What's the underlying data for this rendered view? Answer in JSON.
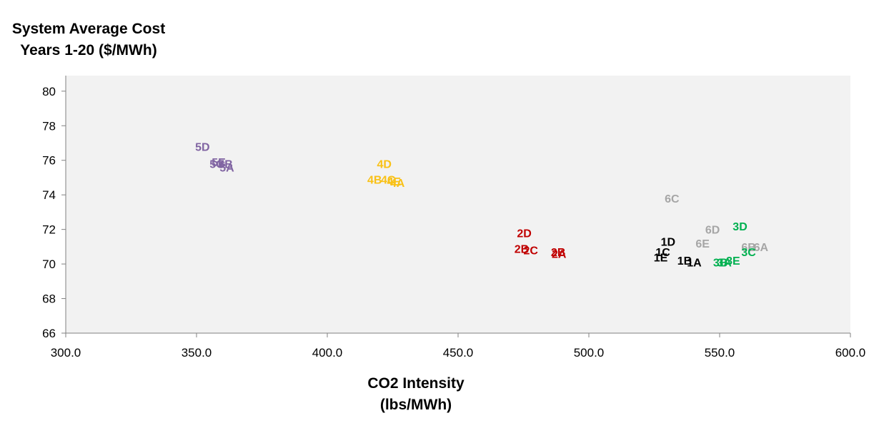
{
  "chart_data": {
    "type": "scatter",
    "ylabel_lines": [
      "System Average Cost",
      "Years 1-20 ($/MWh)"
    ],
    "xlabel_lines": [
      "CO2 Intensity",
      "(lbs/MWh)"
    ],
    "xlim": [
      300,
      600
    ],
    "ylim": [
      66,
      80.9
    ],
    "xticks": [
      "300.0",
      "350.0",
      "400.0",
      "450.0",
      "500.0",
      "550.0",
      "600.0"
    ],
    "xtick_values": [
      300,
      350,
      400,
      450,
      500,
      550,
      600
    ],
    "yticks": [
      "66",
      "68",
      "70",
      "72",
      "74",
      "76",
      "78",
      "80"
    ],
    "ytick_values": [
      66,
      68,
      70,
      72,
      74,
      76,
      78,
      80
    ],
    "grid": false,
    "plot_background": "#f2f2f2",
    "points": [
      {
        "label": "5D",
        "x": 349.5,
        "y": 76.8,
        "color": "#8064a2"
      },
      {
        "label": "5E",
        "x": 355.8,
        "y": 75.9,
        "color": "#8064a2"
      },
      {
        "label": "5C",
        "x": 355.0,
        "y": 75.8,
        "color": "#8064a2"
      },
      {
        "label": "5B",
        "x": 358.3,
        "y": 75.8,
        "color": "#8064a2"
      },
      {
        "label": "5A",
        "x": 358.8,
        "y": 75.6,
        "color": "#8064a2"
      },
      {
        "label": "4D",
        "x": 419.0,
        "y": 75.8,
        "color": "#f9c116"
      },
      {
        "label": "4B",
        "x": 415.3,
        "y": 74.9,
        "color": "#f9c116"
      },
      {
        "label": "4C",
        "x": 420.5,
        "y": 74.9,
        "color": "#f9c116"
      },
      {
        "label": "4E",
        "x": 422.8,
        "y": 74.8,
        "color": "#f9c116"
      },
      {
        "label": "4A",
        "x": 424.0,
        "y": 74.7,
        "color": "#f9c116"
      },
      {
        "label": "2D",
        "x": 472.5,
        "y": 71.8,
        "color": "#c00000"
      },
      {
        "label": "2B",
        "x": 471.5,
        "y": 70.9,
        "color": "#c00000"
      },
      {
        "label": "2C",
        "x": 475.0,
        "y": 70.8,
        "color": "#c00000"
      },
      {
        "label": "2B",
        "x": 485.5,
        "y": 70.7,
        "color": "#c00000"
      },
      {
        "label": "2A",
        "x": 485.8,
        "y": 70.6,
        "color": "#c00000"
      },
      {
        "label": "6C",
        "x": 529.0,
        "y": 73.8,
        "color": "#a6a6a6"
      },
      {
        "label": "6D",
        "x": 544.5,
        "y": 72.0,
        "color": "#a6a6a6"
      },
      {
        "label": "6E",
        "x": 540.8,
        "y": 71.2,
        "color": "#a6a6a6"
      },
      {
        "label": "6B",
        "x": 558.3,
        "y": 71.0,
        "color": "#a6a6a6"
      },
      {
        "label": "6A",
        "x": 563.0,
        "y": 71.0,
        "color": "#a6a6a6"
      },
      {
        "label": "1D",
        "x": 527.5,
        "y": 71.3,
        "color": "#000000"
      },
      {
        "label": "1C",
        "x": 525.5,
        "y": 70.7,
        "color": "#000000"
      },
      {
        "label": "1E",
        "x": 524.8,
        "y": 70.4,
        "color": "#000000"
      },
      {
        "label": "1B",
        "x": 533.8,
        "y": 70.2,
        "color": "#000000"
      },
      {
        "label": "1A",
        "x": 537.5,
        "y": 70.1,
        "color": "#000000"
      },
      {
        "label": "3D",
        "x": 555.0,
        "y": 72.2,
        "color": "#00b050"
      },
      {
        "label": "3C",
        "x": 558.3,
        "y": 70.7,
        "color": "#00b050"
      },
      {
        "label": "3E",
        "x": 552.5,
        "y": 70.2,
        "color": "#00b050"
      },
      {
        "label": "3B",
        "x": 547.5,
        "y": 70.1,
        "color": "#00b050"
      },
      {
        "label": "3A",
        "x": 549.0,
        "y": 70.1,
        "color": "#00b050"
      }
    ]
  }
}
